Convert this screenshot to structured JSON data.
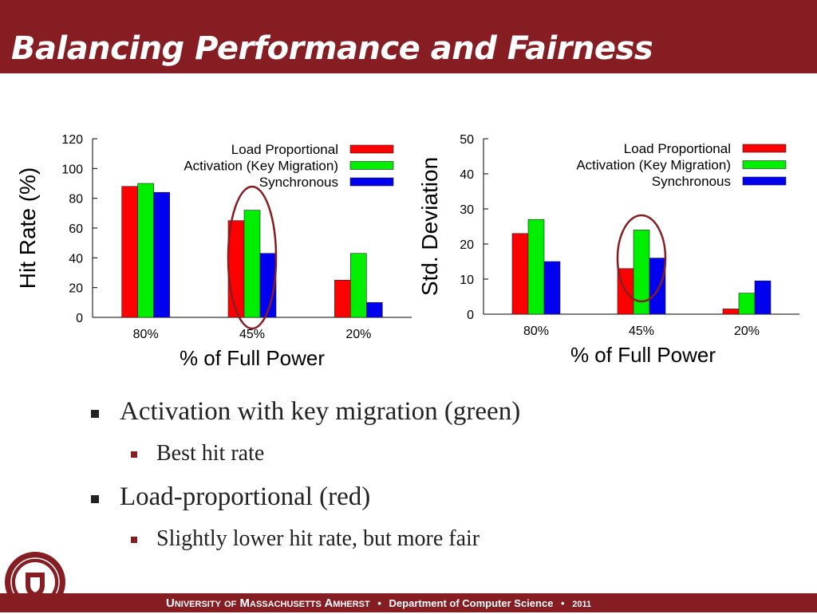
{
  "slide": {
    "title": "Balancing Performance and Fairness"
  },
  "bullets": [
    {
      "text": "Activation with key migration (green)",
      "sub": [
        "Best hit rate"
      ]
    },
    {
      "text": "Load-proportional (red)",
      "sub": [
        "Slightly lower hit rate, but more fair"
      ]
    }
  ],
  "footer": {
    "university": "University of Massachusetts Amherst",
    "department": "Department of Computer Science",
    "year": "2011",
    "separator": "•"
  },
  "colors": {
    "brand": "#861d22",
    "load_proportional": "#ff0000",
    "activation": "#00ee00",
    "synchronous": "#0000ee",
    "highlight_circle": "#861d22"
  },
  "chart_data": [
    {
      "type": "bar",
      "categories": [
        "80%",
        "45%",
        "20%"
      ],
      "series": [
        {
          "name": "Load Proportional",
          "values": [
            88,
            65,
            25
          ]
        },
        {
          "name": "Activation (Key Migration)",
          "values": [
            90,
            72,
            43
          ]
        },
        {
          "name": "Synchronous",
          "values": [
            84,
            43,
            10
          ]
        }
      ],
      "xlabel": "% of Full Power",
      "ylabel": "Hit Rate (%)",
      "ylim": [
        0,
        120
      ],
      "yticks": [
        0,
        20,
        40,
        60,
        80,
        100,
        120
      ],
      "legend": "top-right",
      "grid": false,
      "highlight_category": "45%"
    },
    {
      "type": "bar",
      "categories": [
        "80%",
        "45%",
        "20%"
      ],
      "series": [
        {
          "name": "Load Proportional",
          "values": [
            23,
            13,
            1.5
          ]
        },
        {
          "name": "Activation (Key Migration)",
          "values": [
            27,
            24,
            6
          ]
        },
        {
          "name": "Synchronous",
          "values": [
            15,
            16,
            9.5
          ]
        }
      ],
      "xlabel": "% of Full Power",
      "ylabel": "Std. Deviation",
      "ylim": [
        0,
        50
      ],
      "yticks": [
        0,
        10,
        20,
        30,
        40,
        50
      ],
      "legend": "top-right",
      "grid": false,
      "highlight_category": "45%"
    }
  ]
}
